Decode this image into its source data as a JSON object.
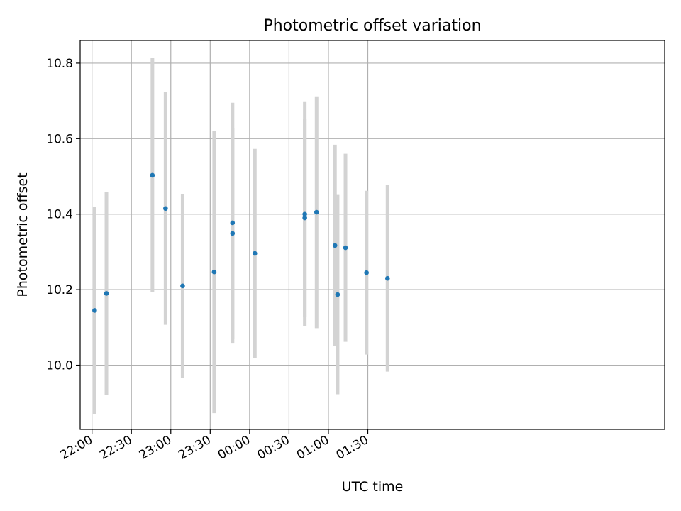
{
  "chart_data": {
    "type": "scatter",
    "title": "Photometric offset variation",
    "xlabel": "UTC time",
    "ylabel": "Photometric offset",
    "x_ticks": [
      "22:00",
      "22:30",
      "23:00",
      "23:30",
      "00:00",
      "00:30",
      "01:00",
      "01:30"
    ],
    "y_ticks": [
      "10.0",
      "10.2",
      "10.4",
      "10.6",
      "10.8"
    ],
    "xlim": [
      "21:51",
      "03:56"
    ],
    "ylim": [
      9.83,
      10.86
    ],
    "x_tick_values": [
      "22:00",
      "22:30",
      "23:00",
      "23:30",
      "24:00",
      "24:30",
      "25:00",
      "25:30"
    ],
    "y_tick_values": [
      10.0,
      10.2,
      10.4,
      10.6,
      10.8
    ],
    "grid": true,
    "colors": {
      "point": "#1f77b4",
      "errorbar": "#d3d3d3",
      "grid": "#b0b0b0"
    },
    "points": [
      {
        "t": "22:02",
        "y": 10.145,
        "err": 0.275
      },
      {
        "t": "22:11",
        "y": 10.19,
        "err": 0.268
      },
      {
        "t": "22:46",
        "y": 10.503,
        "err": 0.31
      },
      {
        "t": "22:56",
        "y": 10.415,
        "err": 0.308
      },
      {
        "t": "23:09",
        "y": 10.21,
        "err": 0.243
      },
      {
        "t": "23:33",
        "y": 10.247,
        "err": 0.374
      },
      {
        "t": "23:47",
        "y": 10.377,
        "err": 0.318
      },
      {
        "t": "23:47",
        "y": 10.349,
        "err": 0.279
      },
      {
        "t": "00:04",
        "y": 10.296,
        "err": 0.277
      },
      {
        "t": "00:42",
        "y": 10.39,
        "err": 0.262
      },
      {
        "t": "00:42",
        "y": 10.4,
        "err": 0.297
      },
      {
        "t": "00:51",
        "y": 10.405,
        "err": 0.307
      },
      {
        "t": "01:05",
        "y": 10.317,
        "err": 0.267
      },
      {
        "t": "01:07",
        "y": 10.187,
        "err": 0.264
      },
      {
        "t": "01:13",
        "y": 10.311,
        "err": 0.249
      },
      {
        "t": "01:29",
        "y": 10.245,
        "err": 0.217
      },
      {
        "t": "01:45",
        "y": 10.23,
        "err": 0.247
      }
    ]
  }
}
